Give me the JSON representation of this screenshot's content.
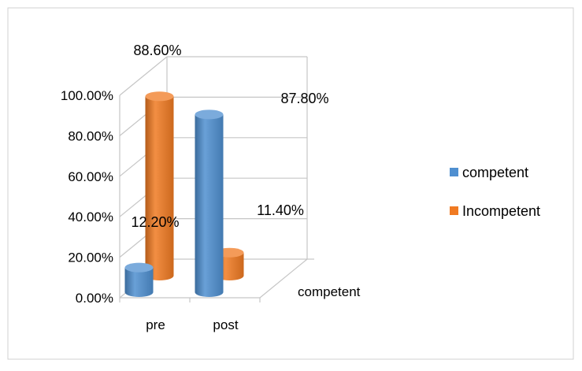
{
  "chart_data": {
    "type": "bar",
    "style": "3d-cylinder",
    "title": "",
    "xlabel": "",
    "ylabel": "",
    "categories": [
      "pre",
      "post"
    ],
    "depth_label": "competent",
    "ylim": [
      0,
      100
    ],
    "yticks": [
      "0.00%",
      "20.00%",
      "40.00%",
      "60.00%",
      "80.00%",
      "100.00%"
    ],
    "grid": true,
    "legend": "right",
    "series": [
      {
        "name": "competent",
        "color": "#4F8FD0",
        "values": [
          12.2,
          87.8
        ]
      },
      {
        "name": "Incompetent",
        "color": "#F07A22",
        "values": [
          88.6,
          11.4
        ]
      }
    ],
    "data_labels": [
      "88.60%",
      "87.80%",
      "12.20%",
      "11.40%"
    ]
  }
}
